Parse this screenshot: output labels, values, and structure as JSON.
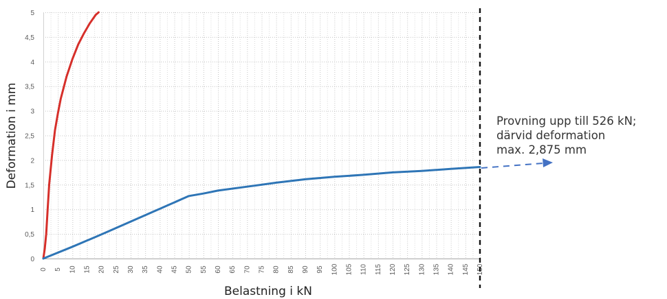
{
  "chart_data": {
    "type": "line",
    "xlabel": "Belastning i kN",
    "ylabel": "Deformation i mm",
    "xlim": [
      0,
      150
    ],
    "ylim": [
      0,
      5
    ],
    "x_ticks": [
      "0",
      "5",
      "10",
      "15",
      "20",
      "25",
      "30",
      "35",
      "40",
      "45",
      "50",
      "55",
      "60",
      "65",
      "70",
      "75",
      "80",
      "85",
      "90",
      "95",
      "100",
      "105",
      "110",
      "115",
      "120",
      "125",
      "130",
      "135",
      "140",
      "145",
      "150"
    ],
    "y_ticks": [
      "0",
      "0,5",
      "1",
      "1,5",
      "2",
      "2,5",
      "3",
      "3,5",
      "4",
      "4,5",
      "5"
    ],
    "grid": "dotted vertical and horizontal",
    "series": [
      {
        "color": "#d62f2a",
        "x": [
          0,
          0.5,
          1,
          1.5,
          2,
          3,
          4,
          5,
          6,
          8,
          10,
          12,
          14,
          16,
          18,
          19
        ],
        "y": [
          0,
          0.2,
          0.5,
          1.0,
          1.5,
          2.1,
          2.6,
          2.95,
          3.25,
          3.7,
          4.05,
          4.35,
          4.58,
          4.78,
          4.95,
          5.0
        ]
      },
      {
        "color": "#2e75b6",
        "x": [
          0,
          10,
          20,
          30,
          40,
          50,
          55,
          60,
          70,
          80,
          90,
          100,
          110,
          120,
          130,
          140,
          150
        ],
        "y": [
          0,
          0.24,
          0.49,
          0.75,
          1.01,
          1.27,
          1.32,
          1.38,
          1.46,
          1.54,
          1.61,
          1.66,
          1.7,
          1.75,
          1.78,
          1.82,
          1.86
        ]
      }
    ],
    "annotation": {
      "lines": [
        "Provning upp till 526 kN;",
        "därvid deformation",
        "max. 2,875 mm"
      ],
      "marker_x": 150
    }
  }
}
